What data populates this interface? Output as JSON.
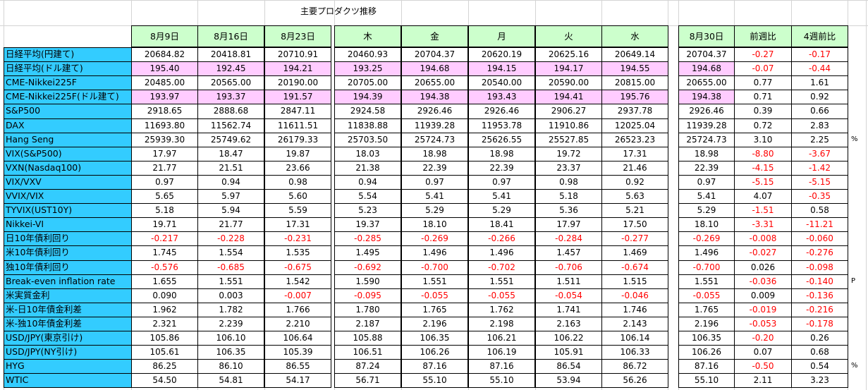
{
  "title": "主要プロダクツ推移",
  "columns": [
    "8月9日",
    "8月16日",
    "8月23日",
    "木",
    "金",
    "月",
    "火",
    "水"
  ],
  "columns2": [
    "8月30日",
    "前週比",
    "4週前比"
  ],
  "rows": [
    {
      "label": "日経平均(円建て)",
      "pink": false,
      "values": [
        "20684.82",
        "20418.81",
        "20710.91",
        "20460.93",
        "20704.37",
        "20620.19",
        "20625.16",
        "20649.14"
      ],
      "values2": [
        "20704.37",
        "-0.27",
        "-0.17"
      ]
    },
    {
      "label": "日経平均(ドル建て)",
      "pink": true,
      "values": [
        "195.40",
        "192.45",
        "194.21",
        "193.25",
        "194.68",
        "194.15",
        "194.17",
        "194.55"
      ],
      "values2": [
        "194.68",
        "-0.07",
        "-0.44"
      ]
    },
    {
      "label": "CME-Nikkei225F",
      "pink": false,
      "values": [
        "20485.00",
        "20565.00",
        "20190.00",
        "20705.00",
        "20655.00",
        "20540.00",
        "20590.00",
        "20815.00"
      ],
      "values2": [
        "20655.00",
        "0.77",
        "1.61"
      ]
    },
    {
      "label": "CME-Nikkei225F(ドル建て)",
      "pink": true,
      "values": [
        "193.97",
        "193.37",
        "191.57",
        "194.39",
        "194.38",
        "193.43",
        "194.41",
        "195.76"
      ],
      "values2": [
        "194.38",
        "0.71",
        "0.92"
      ]
    },
    {
      "label": "S&P500",
      "pink": false,
      "values": [
        "2918.65",
        "2888.68",
        "2847.11",
        "2924.58",
        "2926.46",
        "2926.46",
        "2906.27",
        "2937.78"
      ],
      "values2": [
        "2926.46",
        "0.39",
        "0.66"
      ]
    },
    {
      "label": "DAX",
      "pink": false,
      "values": [
        "11693.80",
        "11562.74",
        "11611.51",
        "11838.88",
        "11939.28",
        "11953.78",
        "11910.86",
        "12025.04"
      ],
      "values2": [
        "11939.28",
        "0.72",
        "2.83"
      ]
    },
    {
      "label": "Hang Seng",
      "pink": false,
      "values": [
        "25939.30",
        "25749.62",
        "26179.33",
        "25703.50",
        "25724.73",
        "25626.55",
        "25527.85",
        "26523.23"
      ],
      "values2": [
        "25724.73",
        "3.10",
        "2.25"
      ]
    },
    {
      "label": "VIX(S&P500)",
      "pink": false,
      "values": [
        "17.97",
        "18.47",
        "19.87",
        "18.03",
        "18.98",
        "18.98",
        "19.72",
        "17.31"
      ],
      "values2": [
        "18.98",
        "-8.80",
        "-3.67"
      ]
    },
    {
      "label": "VXN(Nasdaq100)",
      "pink": false,
      "values": [
        "21.77",
        "21.51",
        "23.66",
        "21.38",
        "22.39",
        "22.39",
        "23.37",
        "21.46"
      ],
      "values2": [
        "22.39",
        "-4.15",
        "-1.42"
      ]
    },
    {
      "label": "VIX/VXV",
      "pink": false,
      "values": [
        "0.97",
        "0.94",
        "0.98",
        "0.94",
        "0.97",
        "0.97",
        "0.98",
        "0.92"
      ],
      "values2": [
        "0.97",
        "-5.15",
        "-5.15"
      ]
    },
    {
      "label": "VVIX/VIX",
      "pink": false,
      "values": [
        "5.65",
        "5.97",
        "5.60",
        "5.54",
        "5.41",
        "5.41",
        "5.18",
        "5.63"
      ],
      "values2": [
        "5.41",
        "4.07",
        "-0.35"
      ]
    },
    {
      "label": "TYVIX(UST10Y)",
      "pink": false,
      "values": [
        "5.18",
        "5.94",
        "5.59",
        "5.23",
        "5.29",
        "5.29",
        "5.36",
        "5.21"
      ],
      "values2": [
        "5.29",
        "-1.51",
        "0.58"
      ]
    },
    {
      "label": "Nikkei-VI",
      "pink": false,
      "values": [
        "19.71",
        "21.77",
        "17.31",
        "19.37",
        "18.10",
        "18.41",
        "17.97",
        "17.50"
      ],
      "values2": [
        "18.10",
        "-3.31",
        "-11.21"
      ]
    },
    {
      "label": "日10年債利回り",
      "pink": false,
      "values": [
        "-0.217",
        "-0.228",
        "-0.231",
        "-0.285",
        "-0.269",
        "-0.266",
        "-0.284",
        "-0.277"
      ],
      "values2": [
        "-0.269",
        "-0.008",
        "-0.060"
      ]
    },
    {
      "label": "米10年債利回り",
      "pink": false,
      "values": [
        "1.745",
        "1.554",
        "1.535",
        "1.495",
        "1.496",
        "1.496",
        "1.457",
        "1.469"
      ],
      "values2": [
        "1.496",
        "-0.027",
        "-0.276"
      ]
    },
    {
      "label": "独10年債利回り",
      "pink": false,
      "values": [
        "-0.576",
        "-0.685",
        "-0.675",
        "-0.692",
        "-0.700",
        "-0.702",
        "-0.706",
        "-0.674"
      ],
      "values2": [
        "-0.700",
        "0.026",
        "-0.098"
      ]
    },
    {
      "label": "Break-even inflation rate",
      "pink": false,
      "values": [
        "1.655",
        "1.551",
        "1.542",
        "1.590",
        "1.551",
        "1.551",
        "1.511",
        "1.515"
      ],
      "values2": [
        "1.551",
        "-0.036",
        "-0.140"
      ]
    },
    {
      "label": "米実質金利",
      "pink": false,
      "values": [
        "0.090",
        "0.003",
        "-0.007",
        "-0.095",
        "-0.055",
        "-0.055",
        "-0.054",
        "-0.046"
      ],
      "values2": [
        "-0.055",
        "0.009",
        "-0.136"
      ]
    },
    {
      "label": "米-日10年債金利差",
      "pink": false,
      "values": [
        "1.962",
        "1.782",
        "1.766",
        "1.780",
        "1.765",
        "1.762",
        "1.741",
        "1.746"
      ],
      "values2": [
        "1.765",
        "-0.019",
        "-0.216"
      ]
    },
    {
      "label": "米-独10年債金利差",
      "pink": false,
      "values": [
        "2.321",
        "2.239",
        "2.210",
        "2.187",
        "2.196",
        "2.198",
        "2.163",
        "2.143"
      ],
      "values2": [
        "2.196",
        "-0.053",
        "-0.178"
      ]
    },
    {
      "label": "USD/JPY(東京引け)",
      "pink": false,
      "values": [
        "105.86",
        "106.10",
        "106.64",
        "105.88",
        "106.35",
        "106.21",
        "106.22",
        "106.14"
      ],
      "values2": [
        "106.35",
        "-0.20",
        "0.26"
      ]
    },
    {
      "label": "USD/JPY(NY引け)",
      "pink": false,
      "values": [
        "105.61",
        "106.35",
        "105.39",
        "106.51",
        "106.26",
        "106.19",
        "105.91",
        "106.33"
      ],
      "values2": [
        "106.26",
        "0.07",
        "0.68"
      ]
    },
    {
      "label": "HYG",
      "pink": false,
      "values": [
        "86.25",
        "86.10",
        "86.55",
        "87.24",
        "87.16",
        "87.16",
        "86.54",
        "86.72"
      ],
      "values2": [
        "87.16",
        "-0.50",
        "0.54"
      ]
    },
    {
      "label": "WTIC",
      "pink": false,
      "values": [
        "54.50",
        "54.81",
        "54.17",
        "56.71",
        "55.10",
        "55.10",
        "53.94",
        "56.26"
      ],
      "values2": [
        "55.10",
        "2.11",
        "3.23"
      ]
    }
  ],
  "side_notes": [
    {
      "text": "%",
      "row": 6
    },
    {
      "text": "P",
      "row": 16
    },
    {
      "text": "%",
      "row": 22
    }
  ],
  "colors": {
    "header_bg": "#ccffcc",
    "label_bg": "#33ccff",
    "pink_bg": "#ffccff",
    "negative": "#ff0000",
    "gridline": "#d4d4d4"
  }
}
